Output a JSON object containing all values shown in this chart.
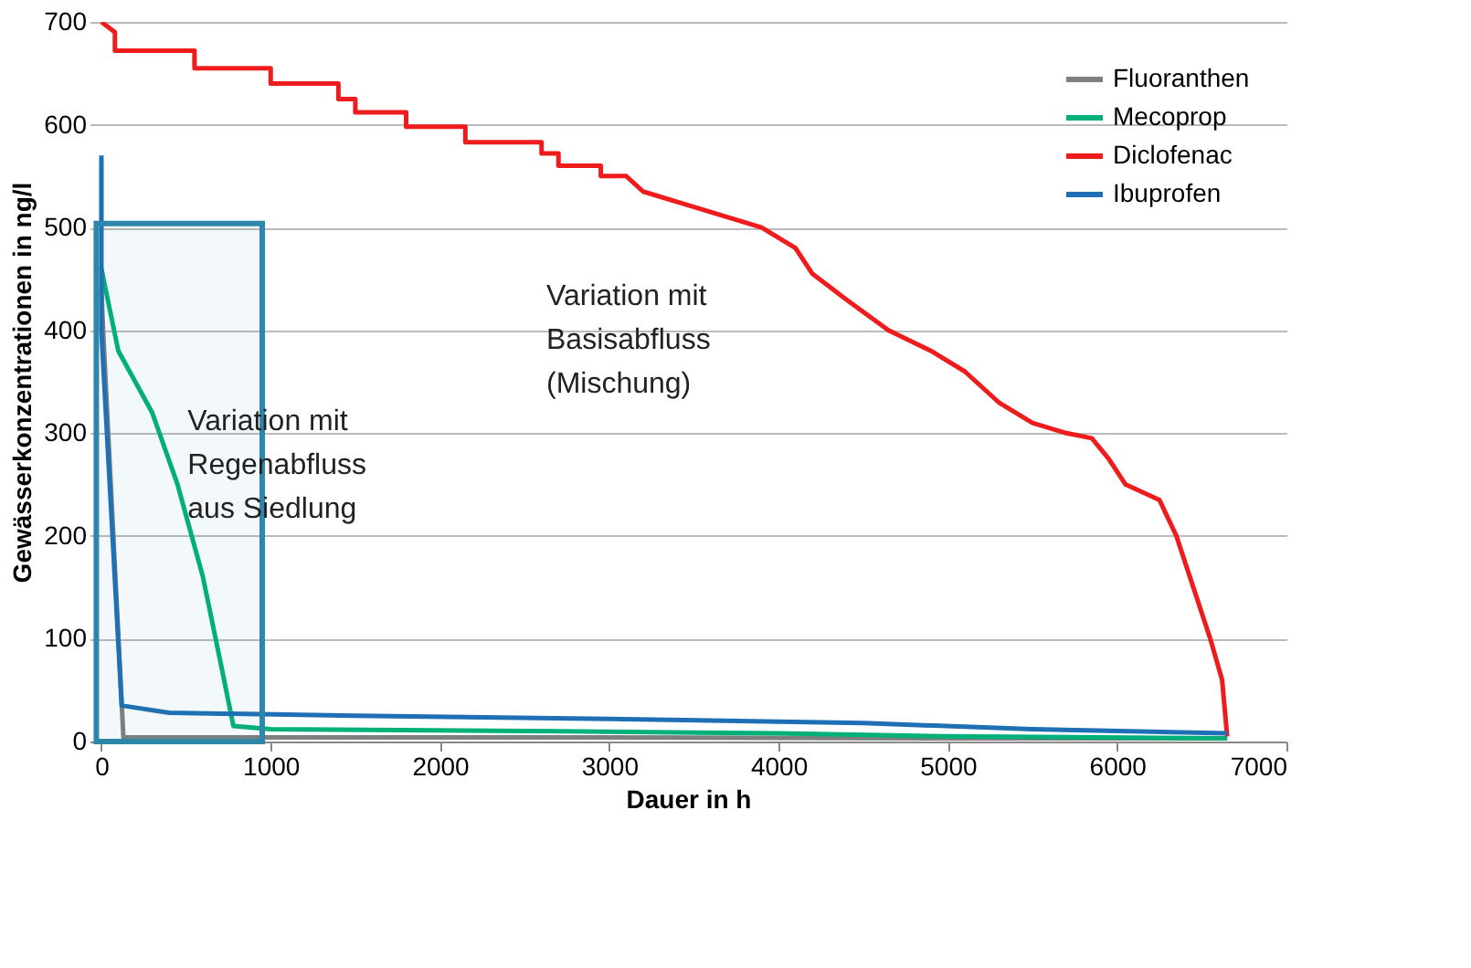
{
  "chart_data": {
    "type": "line",
    "xlabel": "Dauer in h",
    "ylabel": "Gewässerkonzentrationen in ng/l",
    "xlim": [
      -70,
      7000
    ],
    "xticks": [
      0,
      1000,
      2000,
      3000,
      4000,
      5000,
      6000,
      7000
    ],
    "ylim": [
      0,
      700
    ],
    "yticks": [
      0,
      100,
      200,
      300,
      400,
      500,
      600,
      700
    ],
    "grid": "y",
    "legend": "top right",
    "marker": "none",
    "line_style": "solid",
    "series": [
      {
        "name": "Fluoranthen",
        "color": "#7f7f7f",
        "x": [
          0,
          10,
          130,
          1000,
          3000,
          5000,
          6650
        ],
        "values": [
          440,
          400,
          4,
          4,
          4,
          3,
          3
        ]
      },
      {
        "name": "Mecoprop",
        "color": "#00b07a",
        "x": [
          0,
          100,
          300,
          450,
          600,
          700,
          780,
          1000,
          2700,
          4000,
          5000,
          6650
        ],
        "values": [
          460,
          380,
          320,
          250,
          160,
          80,
          15,
          12,
          10,
          8,
          5,
          3
        ]
      },
      {
        "name": "Diclofenac",
        "color": "#ee1c1c",
        "x": [
          0,
          80,
          80,
          550,
          550,
          1000,
          1000,
          1400,
          1400,
          1500,
          1500,
          1800,
          1800,
          2150,
          2150,
          2600,
          2600,
          2700,
          2700,
          2950,
          2950,
          3100,
          3200,
          3500,
          3900,
          4100,
          4200,
          4400,
          4650,
          4900,
          5100,
          5300,
          5500,
          5700,
          5850,
          5950,
          6050,
          6250,
          6350,
          6450,
          6550,
          6620,
          6650
        ],
        "values": [
          700,
          690,
          672,
          672,
          655,
          655,
          640,
          640,
          625,
          625,
          612,
          612,
          598,
          598,
          583,
          583,
          572,
          572,
          560,
          560,
          550,
          550,
          535,
          520,
          500,
          480,
          455,
          430,
          400,
          380,
          360,
          330,
          310,
          300,
          295,
          275,
          250,
          235,
          200,
          150,
          100,
          60,
          5
        ]
      },
      {
        "name": "Ibuprofen",
        "color": "#1f6fb5",
        "x": [
          0,
          0,
          120,
          400,
          1500,
          3000,
          4500,
          5500,
          6650
        ],
        "values": [
          570,
          400,
          35,
          28,
          25,
          22,
          18,
          12,
          8
        ]
      }
    ],
    "bands": [
      {
        "axis": "x",
        "from": -30,
        "to": 950,
        "color": "#2e86ab",
        "label": "Variation mit\nRegenabfluss\naus Siedlung"
      }
    ],
    "annotations": [
      "Variation mit\nBasisabfluss\n(Mischung)"
    ]
  }
}
